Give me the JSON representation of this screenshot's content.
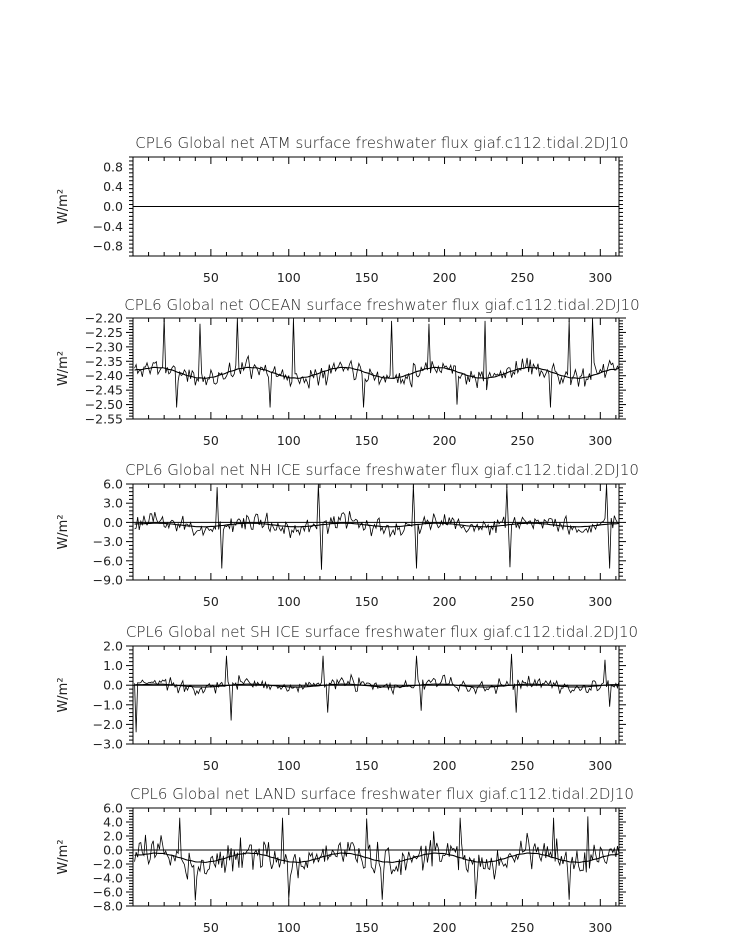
{
  "chart_data": [
    {
      "type": "line",
      "title": "CPL6 Global net ATM surface freshwater flux giaf.c112.tidal.2DJ10",
      "ylabel": "W/m²",
      "xlabel": "",
      "xlim": [
        0,
        312
      ],
      "ylim": [
        -1.0,
        1.0
      ],
      "yticks": [
        "0.8",
        "0.4",
        "0.0",
        "−0.4",
        "−0.8"
      ],
      "ytick_values": [
        0.8,
        0.4,
        0.0,
        -0.4,
        -0.8
      ],
      "xticks": [
        "50",
        "100",
        "150",
        "200",
        "250",
        "300"
      ],
      "xtick_values": [
        50,
        100,
        150,
        200,
        250,
        300
      ],
      "series": [
        {
          "kind": "constant",
          "value": 0.0
        }
      ]
    },
    {
      "type": "line",
      "title": "CPL6 Global net OCEAN surface freshwater flux giaf.c112.tidal.2DJ10",
      "ylabel": "W/m²",
      "xlabel": "",
      "xlim": [
        0,
        312
      ],
      "ylim": [
        -2.55,
        -2.2
      ],
      "yticks": [
        "−2.20",
        "−2.25",
        "−2.30",
        "−2.35",
        "−2.40",
        "−2.45",
        "−2.50",
        "−2.55"
      ],
      "ytick_values": [
        -2.2,
        -2.25,
        -2.3,
        -2.35,
        -2.4,
        -2.45,
        -2.5,
        -2.55
      ],
      "xticks": [
        "50",
        "100",
        "150",
        "200",
        "250",
        "300"
      ],
      "xtick_values": [
        50,
        100,
        150,
        200,
        250,
        300
      ],
      "series": [
        {
          "kind": "monthly",
          "mean": -2.39,
          "seasonal_amp": 0.022,
          "noise_amp": 0.045,
          "period": 60,
          "seed": 11,
          "spikes": [
            [
              20,
              -2.2
            ],
            [
              43,
              -2.22
            ],
            [
              67,
              -2.2
            ],
            [
              103,
              -2.2
            ],
            [
              166,
              -2.21
            ],
            [
              190,
              -2.22
            ],
            [
              226,
              -2.21
            ],
            [
              280,
              -2.21
            ],
            [
              295,
              -2.2
            ],
            [
              28,
              -2.51
            ],
            [
              88,
              -2.51
            ],
            [
              148,
              -2.51
            ],
            [
              208,
              -2.5
            ],
            [
              268,
              -2.51
            ]
          ]
        },
        {
          "kind": "smooth",
          "mean": -2.39,
          "seasonal_amp": 0.02,
          "period": 60,
          "smooth_window": 12
        }
      ]
    },
    {
      "type": "line",
      "title": "CPL6 Global net NH ICE surface freshwater flux giaf.c112.tidal.2DJ10",
      "ylabel": "W/m²",
      "xlabel": "",
      "xlim": [
        0,
        312
      ],
      "ylim": [
        -9.0,
        6.0
      ],
      "yticks": [
        "6.0",
        "3.0",
        "0.0",
        "−3.0",
        "−6.0",
        "−9.0"
      ],
      "ytick_values": [
        6.0,
        3.0,
        0.0,
        -3.0,
        -6.0,
        -9.0
      ],
      "xticks": [
        "50",
        "100",
        "150",
        "200",
        "250",
        "300"
      ],
      "xtick_values": [
        50,
        100,
        150,
        200,
        250,
        300
      ],
      "series": [
        {
          "kind": "monthly",
          "mean": -0.4,
          "seasonal_amp": 0.6,
          "noise_amp": 2.0,
          "period": 60,
          "seed": 23,
          "spikes": [
            [
              54,
              5.5
            ],
            [
              57,
              -7.2
            ],
            [
              119,
              6.0
            ],
            [
              121,
              -7.4
            ],
            [
              180,
              5.8
            ],
            [
              182,
              -7.2
            ],
            [
              240,
              5.6
            ],
            [
              242,
              -7.0
            ],
            [
              304,
              6.0
            ],
            [
              306,
              -7.2
            ]
          ]
        },
        {
          "kind": "smooth",
          "mean": -0.4,
          "seasonal_amp": 0.3,
          "period": 60,
          "smooth_window": 12
        }
      ]
    },
    {
      "type": "line",
      "title": "CPL6 Global net SH ICE surface freshwater flux giaf.c112.tidal.2DJ10",
      "ylabel": "W/m²",
      "xlabel": "",
      "xlim": [
        0,
        312
      ],
      "ylim": [
        -3.0,
        2.0
      ],
      "yticks": [
        "2.0",
        "1.0",
        "0.0",
        "−1.0",
        "−2.0",
        "−3.0"
      ],
      "ytick_values": [
        2.0,
        1.0,
        0.0,
        -1.0,
        -2.0,
        -3.0
      ],
      "xticks": [
        "50",
        "100",
        "150",
        "200",
        "250",
        "300"
      ],
      "xtick_values": [
        50,
        100,
        150,
        200,
        250,
        300
      ],
      "series": [
        {
          "kind": "monthly",
          "mean": 0.0,
          "seasonal_amp": 0.15,
          "noise_amp": 0.45,
          "period": 60,
          "seed": 37,
          "spikes": [
            [
              2,
              -2.4
            ],
            [
              60,
              1.5
            ],
            [
              63,
              -1.8
            ],
            [
              122,
              1.5
            ],
            [
              125,
              -1.4
            ],
            [
              182,
              1.5
            ],
            [
              185,
              -1.3
            ],
            [
              243,
              1.6
            ],
            [
              246,
              -1.4
            ],
            [
              303,
              1.3
            ],
            [
              306,
              -1.1
            ]
          ]
        },
        {
          "kind": "smooth",
          "mean": -0.02,
          "seasonal_amp": 0.08,
          "period": 60,
          "smooth_window": 12
        }
      ]
    },
    {
      "type": "line",
      "title": "CPL6 Global net LAND surface freshwater flux giaf.c112.tidal.2DJ10",
      "ylabel": "W/m²",
      "xlabel": "",
      "xlim": [
        0,
        312
      ],
      "ylim": [
        -8.0,
        6.0
      ],
      "yticks": [
        "6.0",
        "4.0",
        "2.0",
        "0.0",
        "−2.0",
        "−4.0",
        "−6.0",
        "−8.0"
      ],
      "ytick_values": [
        6.0,
        4.0,
        2.0,
        0.0,
        -2.0,
        -4.0,
        -6.0,
        -8.0
      ],
      "xticks": [
        "50",
        "100",
        "150",
        "200",
        "250",
        "300"
      ],
      "xtick_values": [
        50,
        100,
        150,
        200,
        250,
        300
      ],
      "series": [
        {
          "kind": "monthly",
          "mean": -1.1,
          "seasonal_amp": 1.0,
          "noise_amp": 3.0,
          "period": 60,
          "seed": 53,
          "spikes": [
            [
              30,
              4.6
            ],
            [
              96,
              4.6
            ],
            [
              150,
              4.5
            ],
            [
              210,
              4.6
            ],
            [
              270,
              4.6
            ],
            [
              292,
              4.8
            ],
            [
              40,
              -7.2
            ],
            [
              100,
              -7.0
            ],
            [
              160,
              -7.1
            ],
            [
              220,
              -7.0
            ],
            [
              280,
              -7.1
            ]
          ]
        },
        {
          "kind": "smooth",
          "mean": -1.1,
          "seasonal_amp": 0.7,
          "period": 60,
          "smooth_window": 12
        }
      ]
    }
  ]
}
